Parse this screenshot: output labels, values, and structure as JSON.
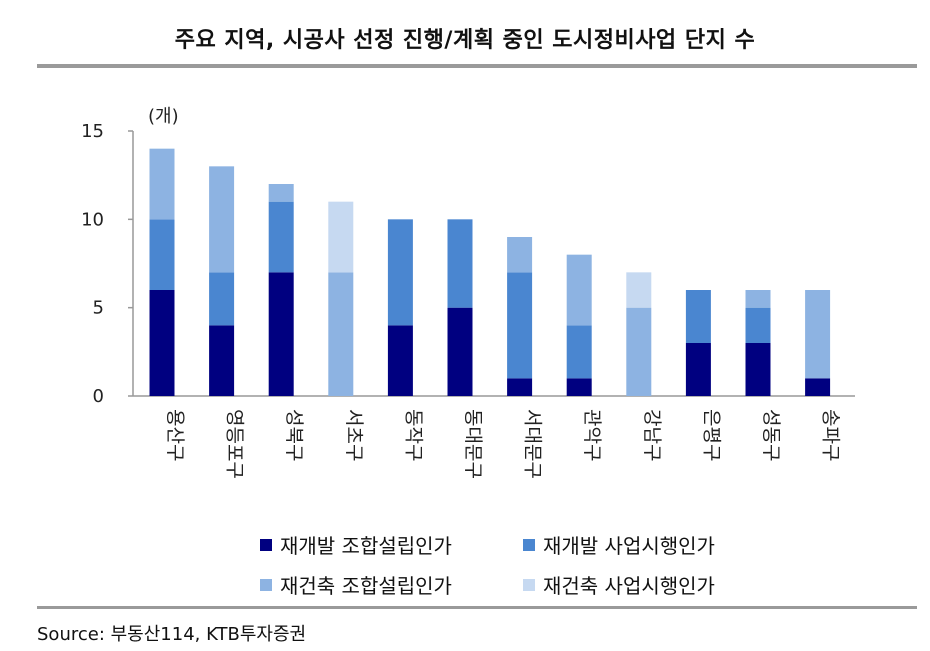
{
  "title": "주요 지역, 시공사 선정 진행/계획 중인 도시정비사업 단지 수",
  "source": "Source: 부동산114, KTB투자증권",
  "chart_data": {
    "type": "bar",
    "stacked": true,
    "unit_label": "(개)",
    "ylim": [
      0,
      15
    ],
    "yticks": [
      0,
      5,
      10,
      15
    ],
    "categories": [
      "용산구",
      "영등포구",
      "성북구",
      "서초구",
      "동작구",
      "동대문구",
      "서대문구",
      "관악구",
      "강남구",
      "은평구",
      "성동구",
      "송파구"
    ],
    "series": [
      {
        "name": "재개발 조합설립인가",
        "color": "#000080",
        "values": [
          6,
          4,
          7,
          0,
          4,
          5,
          1,
          1,
          0,
          3,
          3,
          1
        ]
      },
      {
        "name": "재개발 사업시행인가",
        "color": "#4a86d0",
        "values": [
          4,
          3,
          4,
          0,
          6,
          5,
          6,
          3,
          0,
          3,
          2,
          0
        ]
      },
      {
        "name": "재건축 조합설립인가",
        "color": "#8db3e2",
        "values": [
          4,
          6,
          1,
          7,
          0,
          0,
          2,
          4,
          5,
          0,
          1,
          5
        ]
      },
      {
        "name": "재건축 사업시행인가",
        "color": "#c6d9f1",
        "values": [
          0,
          0,
          0,
          4,
          0,
          0,
          0,
          0,
          2,
          0,
          0,
          0
        ]
      }
    ]
  }
}
